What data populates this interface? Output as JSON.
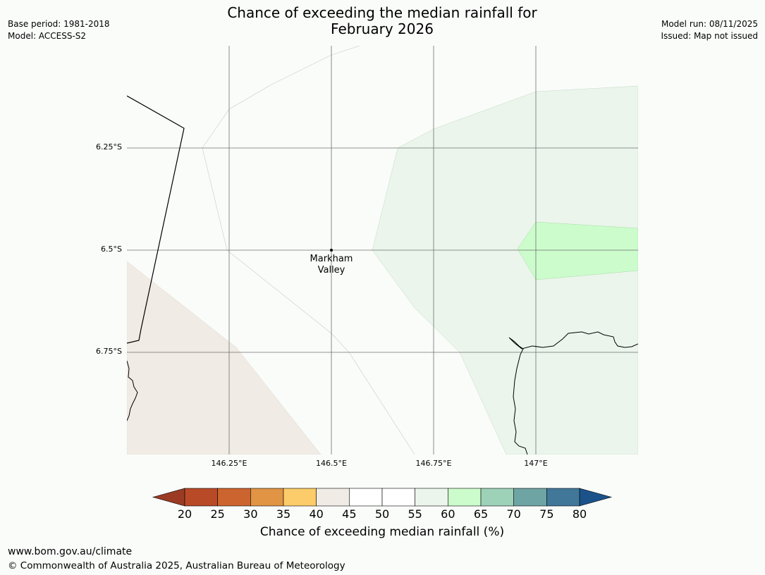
{
  "header": {
    "title_line1": "Chance of exceeding the median rainfall for",
    "title_line2": "February 2026",
    "base_period": "Base period: 1981-2018",
    "model": "Model: ACCESS-S2",
    "model_run": "Model run: 08/11/2025",
    "issued": "Issued: Map not issued"
  },
  "map": {
    "place_label_line1": "Markham",
    "place_label_line2": "Valley",
    "lat_labels": [
      "6.25°S",
      "6.5°S",
      "6.75°S"
    ],
    "lon_labels": [
      "146.25°E",
      "146.5°E",
      "146.75°E",
      "147°E"
    ]
  },
  "colorbar": {
    "ticks": [
      "20",
      "25",
      "30",
      "35",
      "40",
      "45",
      "50",
      "55",
      "60",
      "65",
      "70",
      "75",
      "80"
    ],
    "label": "Chance of exceeding median rainfall (%)",
    "colors": [
      "#9b3b24",
      "#b84a28",
      "#cc6430",
      "#e09444",
      "#fccb6a",
      "#f0ebe4",
      "#ffffff",
      "#ffffff",
      "#ebf5eb",
      "#ccfccc",
      "#9ed2b8",
      "#6ea4a4",
      "#41789a",
      "#1c528a"
    ]
  },
  "footer": {
    "website": "www.bom.gov.au/climate",
    "copyright": "© Commonwealth of Australia 2025, Australian Bureau of Meteorology"
  }
}
